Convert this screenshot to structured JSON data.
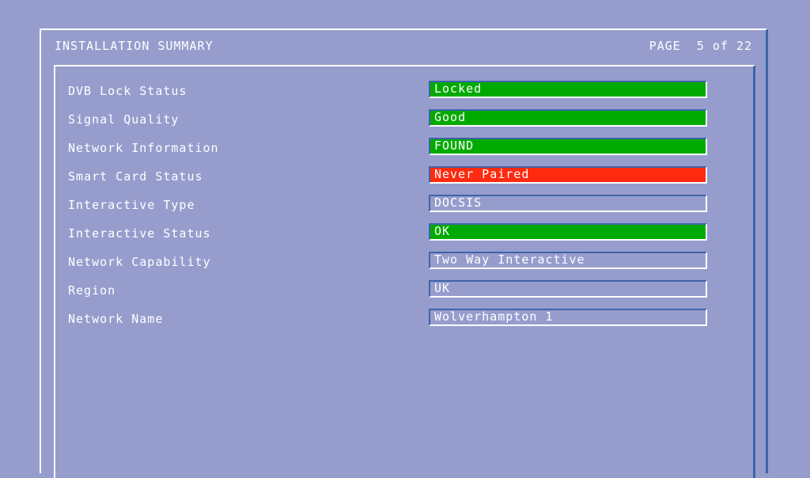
{
  "header": {
    "title": "INSTALLATION SUMMARY",
    "page": "PAGE  5 of 22"
  },
  "colors": {
    "background": "#969dcd",
    "ok": "#00aa00",
    "error": "#ff2a10",
    "neutral": "#969dcd"
  },
  "rows": [
    {
      "label": "DVB Lock Status",
      "value": "Locked",
      "status": "ok"
    },
    {
      "label": "Signal Quality",
      "value": "Good",
      "status": "ok"
    },
    {
      "label": "Network Information",
      "value": "FOUND",
      "status": "ok"
    },
    {
      "label": "Smart Card Status",
      "value": "Never Paired",
      "status": "error"
    },
    {
      "label": "Interactive Type",
      "value": "DOCSIS",
      "status": "neutral"
    },
    {
      "label": "Interactive Status",
      "value": "OK",
      "status": "ok"
    },
    {
      "label": "Network Capability",
      "value": "Two Way Interactive",
      "status": "neutral"
    },
    {
      "label": "Region",
      "value": "UK",
      "status": "neutral"
    },
    {
      "label": "Network Name",
      "value": "Wolverhampton 1",
      "status": "neutral"
    }
  ]
}
